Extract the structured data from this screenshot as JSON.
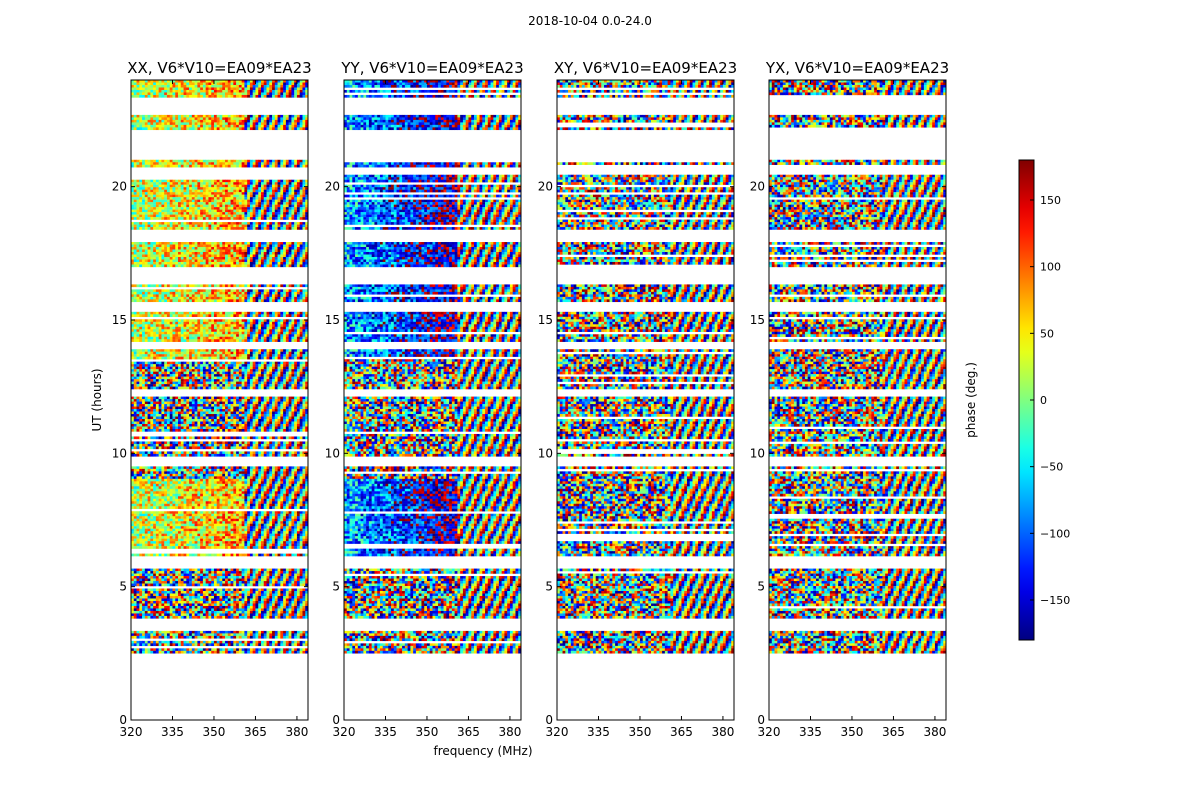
{
  "chart_data": {
    "type": "heatmap",
    "title": "2018-10-04 0.0-24.0",
    "xlabel": "frequency (MHz)",
    "ylabel": "UT (hours)",
    "xlim": [
      320,
      384
    ],
    "ylim": [
      0,
      24
    ],
    "x_ticks": [
      320,
      335,
      350,
      365,
      380
    ],
    "y_ticks": [
      0,
      5,
      10,
      15,
      20
    ],
    "colorbar": {
      "label": "phase (deg.)",
      "range": [
        -180,
        180
      ],
      "ticks": [
        150,
        100,
        50,
        0,
        -50,
        -100,
        -150
      ],
      "tick_labels": [
        "150",
        "100",
        "50",
        "0",
        "−50",
        "−100",
        "−150"
      ],
      "colormap": "jet"
    },
    "data_ut_range": [
      2.5,
      24.0
    ],
    "rfi_edge_mhz": 361,
    "panels": [
      {
        "title": "XX, V6*V10=EA09*EA23",
        "base_phase": 20
      },
      {
        "title": "YY, V6*V10=EA09*EA23",
        "base_phase": -70
      },
      {
        "title": "XY, V6*V10=EA09*EA23",
        "base_phase": null
      },
      {
        "title": "YX, V6*V10=EA09*EA23",
        "base_phase": null
      }
    ],
    "gaps_ut": [
      [
        22.7,
        23.3
      ],
      [
        21.0,
        22.1
      ],
      [
        20.45,
        20.75
      ],
      [
        17.95,
        18.35
      ],
      [
        16.3,
        17.0
      ],
      [
        15.35,
        15.65
      ],
      [
        13.9,
        14.2
      ],
      [
        12.1,
        12.4
      ],
      [
        9.55,
        9.9
      ],
      [
        5.7,
        6.1
      ],
      [
        3.3,
        3.8
      ]
    ]
  }
}
